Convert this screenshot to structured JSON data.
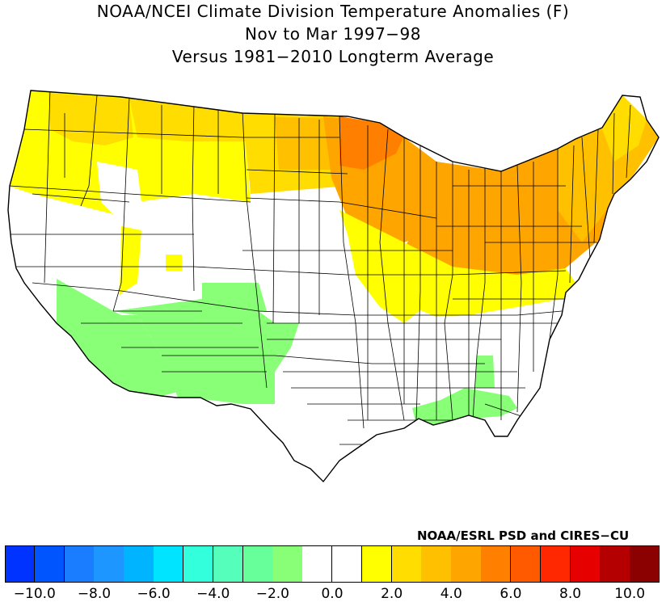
{
  "title": {
    "line1": "NOAA/NCEI Climate Division Temperature Anomalies (F)",
    "line2": "Nov to Mar 1997−98",
    "line3": "Versus 1981−2010 Longterm Average"
  },
  "credit": "NOAA/ESRL PSD and CIRES−CU",
  "legend": {
    "colors": [
      "#0033ff",
      "#0055ff",
      "#1a7cff",
      "#1e96ff",
      "#00b4ff",
      "#00e4ff",
      "#33ffdd",
      "#55ffbb",
      "#66ff99",
      "#88ff77",
      "#ffffff",
      "#ffffff",
      "#ffff00",
      "#ffdd00",
      "#ffc000",
      "#ffa500",
      "#ff8000",
      "#ff5a00",
      "#ff2800",
      "#e60000",
      "#b40000",
      "#8b0000"
    ],
    "tick_labels": [
      "−10.0",
      "−8.0",
      "−6.0",
      "−4.0",
      "−2.0",
      "0.0",
      "2.0",
      "4.0",
      "6.0",
      "8.0",
      "10.0"
    ]
  },
  "map_colors": {
    "none": "#ffffff",
    "cool": "#88ff77",
    "warm1": "#ffff00",
    "warm2": "#ffdd00",
    "warm3": "#ffc000",
    "warm4": "#ffa500",
    "warm5": "#ff8000",
    "border": "#000000"
  }
}
